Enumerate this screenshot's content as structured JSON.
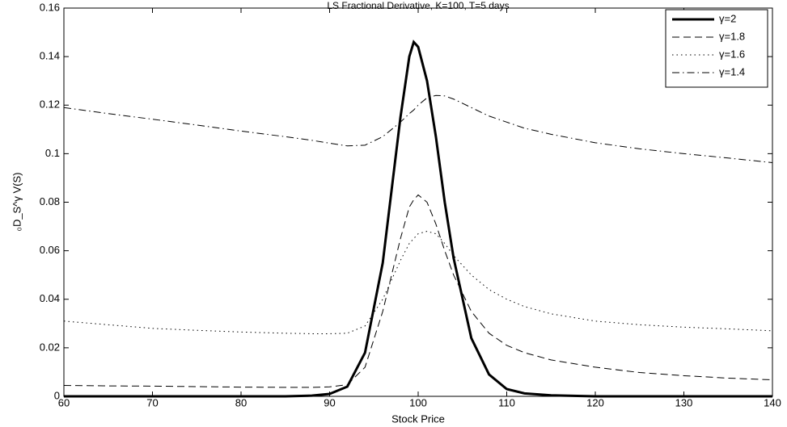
{
  "chart_data": {
    "type": "line",
    "title": "LS Fractional Derivative, K=100, T=5 days",
    "xlabel": "Stock Price",
    "ylabel": "₀D_S^γ V(S)",
    "x": [
      60,
      65,
      70,
      75,
      80,
      85,
      88,
      90,
      92,
      94,
      96,
      97,
      98,
      99,
      99.5,
      100,
      101,
      102,
      103,
      104,
      106,
      108,
      110,
      112,
      115,
      120,
      125,
      130,
      135,
      140
    ],
    "series": [
      {
        "name": "γ=2",
        "color": "#000000",
        "style": "solid",
        "width": 3,
        "values": [
          0,
          0,
          0,
          0,
          0,
          0,
          0.0003,
          0.001,
          0.004,
          0.018,
          0.055,
          0.085,
          0.115,
          0.14,
          0.146,
          0.144,
          0.13,
          0.107,
          0.08,
          0.057,
          0.024,
          0.009,
          0.003,
          0.0012,
          0.0004,
          0,
          0,
          0,
          0,
          0
        ]
      },
      {
        "name": "γ=1.8",
        "color": "#000000",
        "style": "dashed",
        "width": 1,
        "values": [
          0.0045,
          0.0043,
          0.0042,
          0.004,
          0.0038,
          0.0037,
          0.0037,
          0.0039,
          0.0048,
          0.012,
          0.035,
          0.05,
          0.065,
          0.078,
          0.081,
          0.083,
          0.08,
          0.071,
          0.06,
          0.05,
          0.035,
          0.026,
          0.021,
          0.018,
          0.015,
          0.012,
          0.0098,
          0.0085,
          0.0075,
          0.0068
        ]
      },
      {
        "name": "γ=1.6",
        "color": "#000000",
        "style": "dotted",
        "width": 1,
        "values": [
          0.031,
          0.0295,
          0.028,
          0.0272,
          0.0265,
          0.026,
          0.0258,
          0.0258,
          0.026,
          0.029,
          0.04,
          0.048,
          0.056,
          0.063,
          0.065,
          0.067,
          0.068,
          0.067,
          0.063,
          0.058,
          0.05,
          0.044,
          0.04,
          0.037,
          0.034,
          0.031,
          0.0295,
          0.0285,
          0.0278,
          0.027
        ]
      },
      {
        "name": "γ=1.4",
        "color": "#000000",
        "style": "dashdot",
        "width": 1,
        "values": [
          0.119,
          0.1165,
          0.1142,
          0.1118,
          0.1093,
          0.107,
          0.1055,
          0.1043,
          0.1032,
          0.1035,
          0.107,
          0.11,
          0.113,
          0.1165,
          0.118,
          0.12,
          0.123,
          0.124,
          0.1238,
          0.1225,
          0.119,
          0.1155,
          0.113,
          0.1105,
          0.108,
          0.1045,
          0.102,
          0.1,
          0.0982,
          0.0963
        ]
      }
    ],
    "xlim": [
      60,
      140
    ],
    "xticks": [
      60,
      70,
      80,
      90,
      100,
      110,
      120,
      130,
      140
    ],
    "ylim": [
      0,
      0.16
    ],
    "yticks": [
      0,
      0.02,
      0.04,
      0.06,
      0.08,
      0.1,
      0.12,
      0.14,
      0.16
    ],
    "grid": false,
    "legend": "upper right"
  }
}
